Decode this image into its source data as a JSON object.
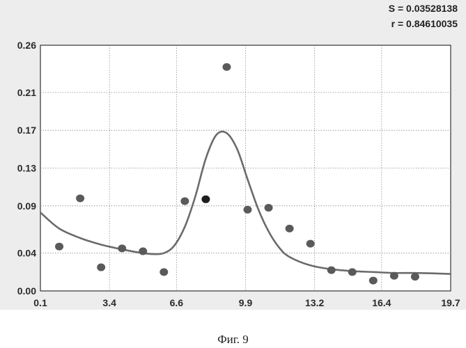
{
  "stats": {
    "s_text": "S = 0.03528138",
    "r_text": "r = 0.84610035"
  },
  "caption": "Фиг. 9",
  "chart_data": {
    "type": "scatter",
    "title": "",
    "xlabel": "",
    "ylabel": "",
    "xlim": [
      0.1,
      19.7
    ],
    "ylim": [
      0.0,
      0.26
    ],
    "x_ticks": [
      0.1,
      3.4,
      6.6,
      9.9,
      13.2,
      16.4,
      19.7
    ],
    "x_tick_labels": [
      "0.1",
      "3.4",
      "6.6",
      "9.9",
      "13.2",
      "16.4",
      "19.7"
    ],
    "y_ticks": [
      0.0,
      0.04,
      0.09,
      0.13,
      0.17,
      0.21,
      0.26
    ],
    "y_tick_labels": [
      "0.00",
      "0.04",
      "0.09",
      "0.13",
      "0.17",
      "0.21",
      "0.26"
    ],
    "grid": true,
    "series": [
      {
        "name": "points",
        "kind": "scatter",
        "color": "#5a5a5a",
        "x": [
          1.0,
          2.0,
          3.0,
          4.0,
          5.0,
          6.0,
          7.0,
          8.0,
          9.0,
          10.0,
          11.0,
          12.0,
          13.0,
          14.0,
          15.0,
          16.0,
          17.0,
          18.0
        ],
        "y": [
          0.047,
          0.098,
          0.025,
          0.045,
          0.042,
          0.02,
          0.095,
          0.097,
          0.237,
          0.086,
          0.088,
          0.066,
          0.05,
          0.022,
          0.02,
          0.011,
          0.016,
          0.015
        ]
      },
      {
        "name": "fit",
        "kind": "line",
        "color": "#6b6b6b",
        "x": [
          0.1,
          1.0,
          2.0,
          3.0,
          4.0,
          5.0,
          5.5,
          6.0,
          6.5,
          7.0,
          7.5,
          8.0,
          8.5,
          9.0,
          9.5,
          10.0,
          10.5,
          11.0,
          11.5,
          12.0,
          13.0,
          14.0,
          15.0,
          16.0,
          17.0,
          18.0,
          19.7
        ],
        "y": [
          0.083,
          0.066,
          0.056,
          0.049,
          0.044,
          0.04,
          0.039,
          0.04,
          0.048,
          0.068,
          0.1,
          0.14,
          0.165,
          0.167,
          0.15,
          0.118,
          0.087,
          0.063,
          0.046,
          0.036,
          0.027,
          0.023,
          0.021,
          0.02,
          0.019,
          0.019,
          0.018
        ]
      }
    ]
  }
}
